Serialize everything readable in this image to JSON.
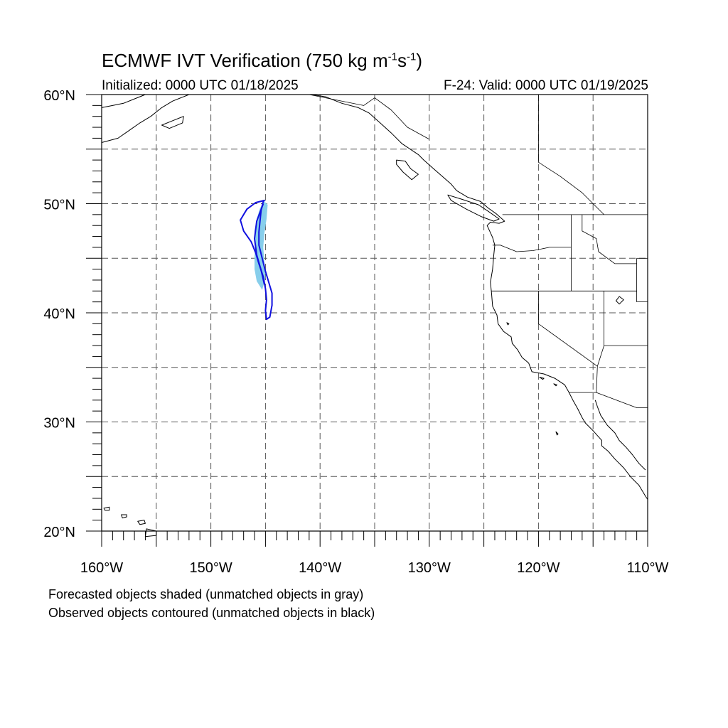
{
  "title": {
    "main": "ECMWF IVT Verification (750 kg m",
    "exp1": "-1",
    "mid": "s",
    "exp2": "-1",
    "close": ")"
  },
  "subtitle_left": "Initialized: 0000 UTC 01/18/2025",
  "subtitle_right": "F-24: Valid: 0000 UTC 01/19/2025",
  "notes": {
    "line1": "Forecasted objects shaded (unmatched objects in gray)",
    "line2": "Observed objects contoured (unmatched objects in black)"
  },
  "map": {
    "lon_range": [
      -160,
      -110
    ],
    "lat_range": [
      20,
      60
    ],
    "gridline_lon_step": 5,
    "gridline_lat_step": 5,
    "gridline_style": "dashed",
    "lon_labels": [
      {
        "lon": -160,
        "text": "160°W"
      },
      {
        "lon": -150,
        "text": "150°W"
      },
      {
        "lon": -140,
        "text": "140°W"
      },
      {
        "lon": -130,
        "text": "130°W"
      },
      {
        "lon": -120,
        "text": "120°W"
      },
      {
        "lon": -110,
        "text": "110°W"
      }
    ],
    "lat_labels": [
      {
        "lat": 60,
        "text": "60°N"
      },
      {
        "lat": 50,
        "text": "50°N"
      },
      {
        "lat": 40,
        "text": "40°N"
      },
      {
        "lat": 30,
        "text": "30°N"
      },
      {
        "lat": 20,
        "text": "20°N"
      }
    ],
    "colors": {
      "forecast_fill": "#87ceeb",
      "forecast_fill_dark": "#5ab4e0",
      "observed_contour": "#1010e0",
      "coast": "#000000",
      "grid": "#555555"
    },
    "forecast_object": [
      [
        -145.1,
        50.2
      ],
      [
        -145.5,
        49.6
      ],
      [
        -145.8,
        48.6
      ],
      [
        -146.0,
        47.5
      ],
      [
        -145.9,
        46.4
      ],
      [
        -146.0,
        45.2
      ],
      [
        -146.0,
        44.0
      ],
      [
        -145.8,
        42.9
      ],
      [
        -145.3,
        42.1
      ],
      [
        -145.0,
        43.2
      ],
      [
        -145.1,
        44.6
      ],
      [
        -145.2,
        46.0
      ],
      [
        -145.1,
        47.3
      ],
      [
        -144.9,
        48.6
      ],
      [
        -144.8,
        49.9
      ]
    ],
    "observed_object": [
      [
        -145.1,
        50.3
      ],
      [
        -145.9,
        50.1
      ],
      [
        -146.7,
        49.5
      ],
      [
        -147.3,
        48.5
      ],
      [
        -147.0,
        47.5
      ],
      [
        -146.3,
        46.5
      ],
      [
        -145.9,
        45.5
      ],
      [
        -145.6,
        44.5
      ],
      [
        -145.2,
        43.3
      ],
      [
        -145.0,
        42.2
      ],
      [
        -144.9,
        41.2
      ],
      [
        -145.0,
        40.2
      ],
      [
        -144.9,
        39.4
      ],
      [
        -144.6,
        39.6
      ],
      [
        -144.4,
        40.7
      ],
      [
        -144.4,
        41.8
      ],
      [
        -144.7,
        42.8
      ],
      [
        -145.0,
        43.8
      ],
      [
        -145.3,
        45.0
      ],
      [
        -145.6,
        46.2
      ],
      [
        -145.6,
        47.4
      ],
      [
        -145.5,
        48.4
      ],
      [
        -145.4,
        49.4
      ],
      [
        -145.2,
        50.2
      ]
    ],
    "observed_inner_line": [
      [
        -145.2,
        50.0
      ],
      [
        -145.8,
        48.4
      ],
      [
        -146.0,
        46.8
      ],
      [
        -145.8,
        45.3
      ],
      [
        -145.4,
        43.9
      ],
      [
        -145.1,
        42.6
      ]
    ],
    "coastline_main": [
      [
        -140.8,
        60.0
      ],
      [
        -139.5,
        59.8
      ],
      [
        -138.0,
        59.2
      ],
      [
        -136.5,
        58.8
      ],
      [
        -135.5,
        58.3
      ],
      [
        -134.5,
        57.4
      ],
      [
        -133.5,
        56.5
      ],
      [
        -132.5,
        55.5
      ],
      [
        -131.0,
        54.5
      ],
      [
        -130.5,
        54.0
      ],
      [
        -129.6,
        53.2
      ],
      [
        -128.8,
        52.5
      ],
      [
        -128.0,
        51.8
      ],
      [
        -127.5,
        51.2
      ],
      [
        -126.5,
        50.6
      ],
      [
        -125.3,
        50.2
      ],
      [
        -124.6,
        49.6
      ],
      [
        -123.9,
        49.1
      ],
      [
        -123.1,
        48.4
      ],
      [
        -123.6,
        48.2
      ],
      [
        -124.4,
        48.3
      ],
      [
        -124.7,
        48.0
      ],
      [
        -124.2,
        46.9
      ],
      [
        -124.0,
        46.2
      ],
      [
        -124.1,
        45.2
      ],
      [
        -124.2,
        44.0
      ],
      [
        -124.4,
        42.8
      ],
      [
        -124.3,
        41.8
      ],
      [
        -124.2,
        40.6
      ],
      [
        -123.8,
        39.8
      ],
      [
        -123.7,
        39.0
      ],
      [
        -123.2,
        38.3
      ],
      [
        -122.5,
        37.8
      ],
      [
        -122.4,
        37.2
      ],
      [
        -121.9,
        36.6
      ],
      [
        -121.5,
        35.9
      ],
      [
        -120.9,
        35.4
      ],
      [
        -120.6,
        34.6
      ],
      [
        -119.5,
        34.4
      ],
      [
        -118.5,
        34.0
      ],
      [
        -117.6,
        33.4
      ],
      [
        -117.2,
        32.7
      ],
      [
        -116.8,
        31.9
      ],
      [
        -116.4,
        31.2
      ],
      [
        -116.0,
        30.4
      ],
      [
        -115.7,
        29.9
      ],
      [
        -115.0,
        29.2
      ],
      [
        -114.2,
        28.3
      ],
      [
        -114.2,
        27.8
      ],
      [
        -113.6,
        27.3
      ],
      [
        -113.0,
        26.6
      ],
      [
        -112.2,
        25.8
      ],
      [
        -111.5,
        24.9
      ],
      [
        -110.8,
        24.2
      ],
      [
        -110.2,
        23.2
      ],
      [
        -110.0,
        22.9
      ]
    ],
    "coastline_gulf": [
      [
        -114.8,
        32.0
      ],
      [
        -114.6,
        31.4
      ],
      [
        -114.3,
        30.6
      ],
      [
        -113.7,
        29.7
      ],
      [
        -113.0,
        29.0
      ],
      [
        -112.6,
        28.3
      ],
      [
        -112.0,
        27.7
      ],
      [
        -111.4,
        27.0
      ],
      [
        -110.8,
        26.2
      ],
      [
        -110.2,
        25.6
      ]
    ],
    "coastline_alaska_west": [
      [
        -160.0,
        55.6
      ],
      [
        -158.5,
        56.0
      ],
      [
        -157.5,
        56.7
      ],
      [
        -156.5,
        57.4
      ],
      [
        -155.5,
        58.0
      ],
      [
        -154.5,
        58.8
      ],
      [
        -153.5,
        59.4
      ],
      [
        -152.0,
        60.0
      ]
    ],
    "coastline_alaska_west2": [
      [
        -160.0,
        58.8
      ],
      [
        -159.0,
        59.0
      ],
      [
        -158.0,
        59.2
      ],
      [
        -157.0,
        59.6
      ],
      [
        -156.0,
        60.0
      ]
    ],
    "state_borders": [
      [
        [
          -124.2,
          46.2
        ],
        [
          -123.5,
          46.2
        ],
        [
          -122.0,
          45.6
        ],
        [
          -120.5,
          45.7
        ],
        [
          -119.0,
          46.0
        ],
        [
          -117.0,
          46.0
        ]
      ],
      [
        [
          -124.3,
          42.0
        ],
        [
          -117.0,
          42.0
        ],
        [
          -111.0,
          42.0
        ]
      ],
      [
        [
          -120.0,
          42.0
        ],
        [
          -120.0,
          39.0
        ],
        [
          -114.6,
          35.1
        ]
      ],
      [
        [
          -117.0,
          49.0
        ],
        [
          -117.0,
          46.0
        ],
        [
          -117.0,
          42.0
        ]
      ],
      [
        [
          -116.0,
          49.0
        ],
        [
          -116.0,
          47.5
        ],
        [
          -114.7,
          46.8
        ],
        [
          -114.5,
          45.6
        ],
        [
          -113.0,
          44.5
        ],
        [
          -111.0,
          44.5
        ]
      ],
      [
        [
          -114.0,
          42.0
        ],
        [
          -114.0,
          37.0
        ],
        [
          -114.6,
          35.1
        ],
        [
          -114.7,
          32.7
        ]
      ],
      [
        [
          -114.0,
          37.0
        ],
        [
          -110.0,
          37.0
        ]
      ],
      [
        [
          -117.2,
          32.7
        ],
        [
          -114.7,
          32.7
        ],
        [
          -111.0,
          31.3
        ],
        [
          -110.0,
          31.3
        ]
      ],
      [
        [
          -123.3,
          49.0
        ],
        [
          -110.0,
          49.0
        ]
      ],
      [
        [
          -111.0,
          45.0
        ],
        [
          -110.0,
          45.0
        ]
      ],
      [
        [
          -111.0,
          45.0
        ],
        [
          -111.0,
          41.0
        ],
        [
          -110.0,
          41.0
        ]
      ]
    ],
    "canada_lines": [
      [
        [
          -125.0,
          60.0
        ],
        [
          -120.0,
          60.0
        ]
      ],
      [
        [
          -120.0,
          60.0
        ],
        [
          -120.0,
          53.8
        ],
        [
          -118.0,
          52.5
        ],
        [
          -116.0,
          51.0
        ],
        [
          -114.0,
          49.0
        ]
      ],
      [
        [
          -141.0,
          60.0
        ],
        [
          -136.0,
          59.0
        ],
        [
          -135.0,
          59.7
        ],
        [
          -133.5,
          58.6
        ],
        [
          -132.0,
          57.0
        ],
        [
          -130.0,
          55.9
        ]
      ]
    ],
    "islands": [
      [
        [
          -133.0,
          54.0
        ],
        [
          -132.2,
          53.9
        ],
        [
          -131.7,
          53.2
        ],
        [
          -131.0,
          52.7
        ],
        [
          -131.6,
          52.2
        ],
        [
          -132.4,
          52.9
        ],
        [
          -133.0,
          53.6
        ],
        [
          -133.0,
          54.0
        ]
      ],
      [
        [
          -128.3,
          50.8
        ],
        [
          -127.0,
          50.4
        ],
        [
          -125.5,
          49.9
        ],
        [
          -124.6,
          49.3
        ],
        [
          -123.6,
          48.6
        ],
        [
          -124.1,
          48.4
        ],
        [
          -125.2,
          48.8
        ],
        [
          -126.6,
          49.5
        ],
        [
          -128.0,
          50.3
        ],
        [
          -128.3,
          50.8
        ]
      ],
      [
        [
          -155.0,
          20.0
        ],
        [
          -155.9,
          20.2
        ],
        [
          -156.0,
          19.5
        ],
        [
          -155.0,
          19.6
        ],
        [
          -155.0,
          20.0
        ]
      ],
      [
        [
          -156.1,
          21.0
        ],
        [
          -156.7,
          20.9
        ],
        [
          -156.5,
          20.6
        ],
        [
          -156.0,
          20.7
        ],
        [
          -156.1,
          21.0
        ]
      ],
      [
        [
          -157.7,
          21.5
        ],
        [
          -158.2,
          21.5
        ],
        [
          -158.1,
          21.2
        ],
        [
          -157.7,
          21.3
        ],
        [
          -157.7,
          21.5
        ]
      ],
      [
        [
          -159.3,
          22.2
        ],
        [
          -159.8,
          22.1
        ],
        [
          -159.7,
          21.9
        ],
        [
          -159.3,
          21.9
        ],
        [
          -159.3,
          22.2
        ]
      ],
      [
        [
          -119.9,
          34.1
        ],
        [
          -119.5,
          34.0
        ],
        [
          -119.6,
          33.9
        ],
        [
          -119.9,
          34.1
        ]
      ],
      [
        [
          -118.6,
          33.5
        ],
        [
          -118.3,
          33.4
        ],
        [
          -118.4,
          33.3
        ],
        [
          -118.6,
          33.5
        ]
      ],
      [
        [
          -118.4,
          29.1
        ],
        [
          -118.2,
          28.9
        ],
        [
          -118.3,
          28.8
        ],
        [
          -118.4,
          29.1
        ]
      ],
      [
        [
          -152.5,
          58.0
        ],
        [
          -153.5,
          57.6
        ],
        [
          -154.5,
          57.2
        ],
        [
          -153.8,
          56.9
        ],
        [
          -152.6,
          57.4
        ],
        [
          -152.5,
          58.0
        ]
      ]
    ],
    "lakes": [
      [
        [
          -112.6,
          41.5
        ],
        [
          -112.2,
          41.2
        ],
        [
          -112.6,
          40.8
        ],
        [
          -112.9,
          41.1
        ],
        [
          -112.6,
          41.5
        ]
      ],
      [
        [
          -122.9,
          39.1
        ],
        [
          -122.7,
          39.0
        ],
        [
          -122.8,
          38.9
        ],
        [
          -122.9,
          39.1
        ]
      ]
    ]
  }
}
